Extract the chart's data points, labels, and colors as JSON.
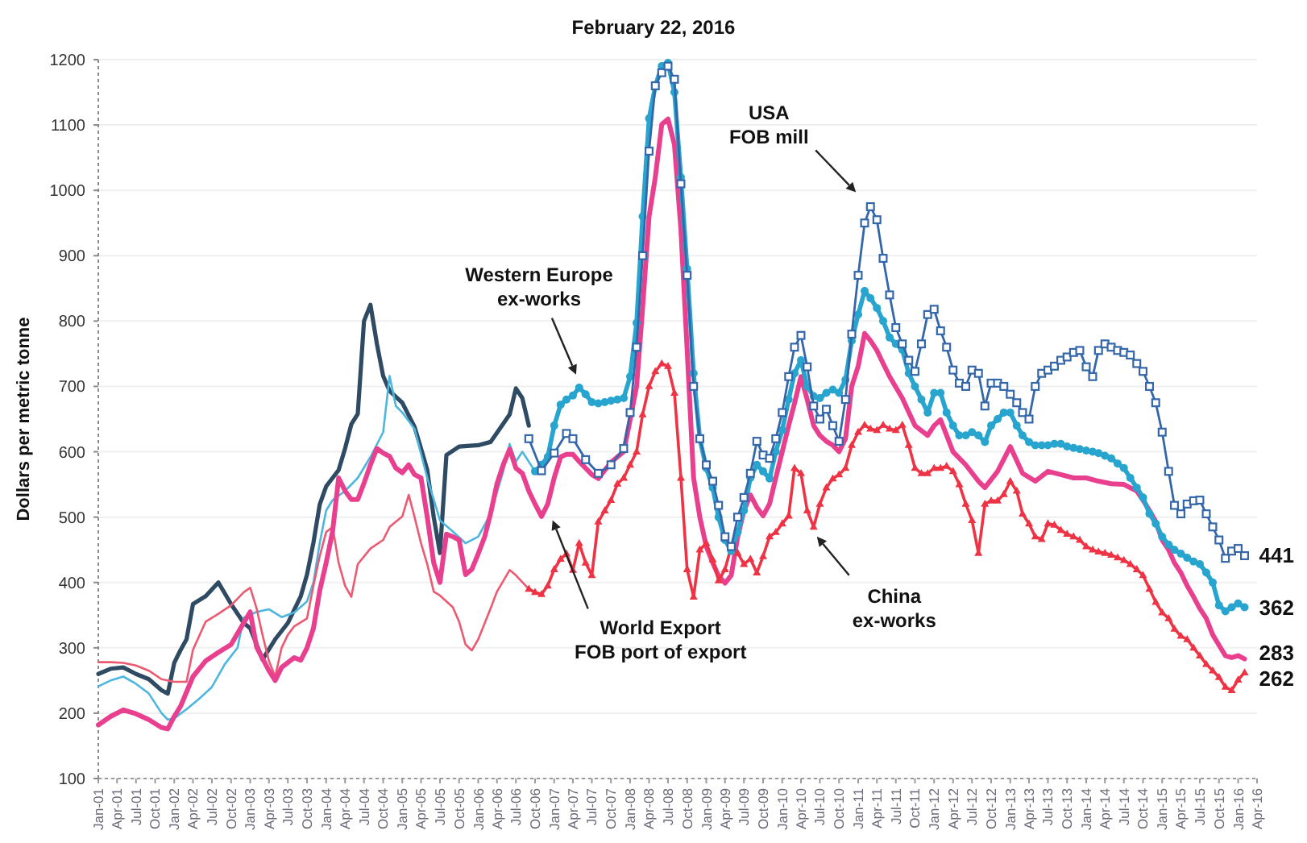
{
  "chart_data": {
    "type": "line",
    "title": "February 22, 2016",
    "ylabel": "Dollars per metric tonne",
    "xlim": [
      "2001-01",
      "2016-04"
    ],
    "xticks": [
      {
        "value": "2001-01",
        "label": "Jan-01"
      },
      {
        "value": "2001-04",
        "label": "Apr-01"
      },
      {
        "value": "2001-07",
        "label": "Jul-01"
      },
      {
        "value": "2001-10",
        "label": "Oct-01"
      },
      {
        "value": "2002-01",
        "label": "Jan-02"
      },
      {
        "value": "2002-04",
        "label": "Apr-02"
      },
      {
        "value": "2002-07",
        "label": "Jul-02"
      },
      {
        "value": "2002-10",
        "label": "Oct-02"
      },
      {
        "value": "2003-01",
        "label": "Jan-03"
      },
      {
        "value": "2003-04",
        "label": "Apr-03"
      },
      {
        "value": "2003-07",
        "label": "Jul-03"
      },
      {
        "value": "2003-10",
        "label": "Oct-03"
      },
      {
        "value": "2004-01",
        "label": "Jan-04"
      },
      {
        "value": "2004-04",
        "label": "Apr-04"
      },
      {
        "value": "2004-07",
        "label": "Jul-04"
      },
      {
        "value": "2004-10",
        "label": "Oct-04"
      },
      {
        "value": "2005-01",
        "label": "Jan-05"
      },
      {
        "value": "2005-04",
        "label": "Apr-05"
      },
      {
        "value": "2005-07",
        "label": "Jul-05"
      },
      {
        "value": "2005-10",
        "label": "Oct-05"
      },
      {
        "value": "2006-01",
        "label": "Jan-06"
      },
      {
        "value": "2006-04",
        "label": "Apr-06"
      },
      {
        "value": "2006-07",
        "label": "Jul-06"
      },
      {
        "value": "2006-10",
        "label": "Oct-06"
      },
      {
        "value": "2007-01",
        "label": "Jan-07"
      },
      {
        "value": "2007-04",
        "label": "Apr-07"
      },
      {
        "value": "2007-07",
        "label": "Jul-07"
      },
      {
        "value": "2007-10",
        "label": "Oct-07"
      },
      {
        "value": "2008-01",
        "label": "Jan-08"
      },
      {
        "value": "2008-04",
        "label": "Apr-08"
      },
      {
        "value": "2008-07",
        "label": "Jul-08"
      },
      {
        "value": "2008-10",
        "label": "Oct-08"
      },
      {
        "value": "2009-01",
        "label": "Jan-09"
      },
      {
        "value": "2009-04",
        "label": "Apr-09"
      },
      {
        "value": "2009-07",
        "label": "Jul-09"
      },
      {
        "value": "2009-10",
        "label": "Oct-09"
      },
      {
        "value": "2010-01",
        "label": "Jan-10"
      },
      {
        "value": "2010-04",
        "label": "Apr-10"
      },
      {
        "value": "2010-07",
        "label": "Jul-10"
      },
      {
        "value": "2010-10",
        "label": "Oct-10"
      },
      {
        "value": "2011-01",
        "label": "Jan-11"
      },
      {
        "value": "2011-04",
        "label": "Apr-11"
      },
      {
        "value": "2011-07",
        "label": "Jul-11"
      },
      {
        "value": "2011-10",
        "label": "Oct-11"
      },
      {
        "value": "2012-01",
        "label": "Jan-12"
      },
      {
        "value": "2012-04",
        "label": "Apr-12"
      },
      {
        "value": "2012-07",
        "label": "Jul-12"
      },
      {
        "value": "2012-10",
        "label": "Oct-12"
      },
      {
        "value": "2013-01",
        "label": "Jan-13"
      },
      {
        "value": "2013-04",
        "label": "Apr-13"
      },
      {
        "value": "2013-07",
        "label": "Jul-13"
      },
      {
        "value": "2013-10",
        "label": "Oct-13"
      },
      {
        "value": "2014-01",
        "label": "Jan-14"
      },
      {
        "value": "2014-04",
        "label": "Apr-14"
      },
      {
        "value": "2014-07",
        "label": "Jul-14"
      },
      {
        "value": "2014-10",
        "label": "Oct-14"
      },
      {
        "value": "2015-01",
        "label": "Jan-15"
      },
      {
        "value": "2015-04",
        "label": "Apr-15"
      },
      {
        "value": "2015-07",
        "label": "Jul-15"
      },
      {
        "value": "2015-10",
        "label": "Oct-15"
      },
      {
        "value": "2016-01",
        "label": "Jan-16"
      },
      {
        "value": "2016-04",
        "label": "Apr-16"
      }
    ],
    "ylim": [
      100,
      1200
    ],
    "yticks": [
      100,
      200,
      300,
      400,
      500,
      600,
      700,
      800,
      900,
      1000,
      1100,
      1200
    ],
    "grid": "y",
    "series": [
      {
        "color": "#2f4b63",
        "x": [
          "2001-01",
          "2001-03",
          "2001-05",
          "2001-07",
          "2001-09",
          "2001-11",
          "2001-12",
          "2002-01",
          "2002-02",
          "2002-03",
          "2002-04",
          "2002-06",
          "2002-08",
          "2002-10",
          "2002-12",
          "2003-01",
          "2003-03",
          "2003-05",
          "2003-07",
          "2003-09",
          "2003-10",
          "2003-11",
          "2003-12",
          "2004-01",
          "2004-03",
          "2004-04",
          "2004-05",
          "2004-06",
          "2004-07",
          "2004-08",
          "2004-09",
          "2004-10",
          "2004-11",
          "2005-01",
          "2005-03",
          "2005-04",
          "2005-05",
          "2005-06",
          "2005-07",
          "2005-08",
          "2005-10",
          "2006-01",
          "2006-03",
          "2006-04",
          "2006-06",
          "2006-07",
          "2006-08",
          "2006-09"
        ],
        "values": [
          260,
          268,
          270,
          260,
          252,
          235,
          230,
          277,
          297,
          313,
          367,
          379,
          400,
          367,
          338,
          330,
          282,
          313,
          338,
          379,
          412,
          461,
          519,
          547,
          572,
          605,
          642,
          658,
          800,
          825,
          765,
          716,
          693,
          675,
          638,
          605,
          572,
          500,
          445,
          595,
          608,
          610,
          615,
          629,
          657,
          697,
          682,
          640
        ]
      },
      {
        "color": "#4db6df",
        "x": [
          "2001-01",
          "2001-03",
          "2001-05",
          "2001-07",
          "2001-09",
          "2001-11",
          "2001-12",
          "2002-01",
          "2002-03",
          "2002-05",
          "2002-07",
          "2002-09",
          "2002-11",
          "2002-12",
          "2003-02",
          "2003-04",
          "2003-06",
          "2003-08",
          "2003-10",
          "2003-11",
          "2003-12",
          "2004-01",
          "2004-02",
          "2004-04",
          "2004-06",
          "2004-08",
          "2004-10",
          "2004-11",
          "2004-12",
          "2005-01",
          "2005-03",
          "2005-05",
          "2005-07",
          "2005-09",
          "2005-11",
          "2006-01",
          "2006-03",
          "2006-05",
          "2006-06",
          "2006-07",
          "2006-08",
          "2006-10"
        ],
        "values": [
          241,
          250,
          256,
          245,
          230,
          200,
          190,
          192,
          206,
          222,
          240,
          275,
          300,
          346,
          355,
          359,
          347,
          354,
          371,
          400,
          460,
          510,
          526,
          540,
          560,
          592,
          630,
          716,
          670,
          660,
          635,
          560,
          495,
          478,
          460,
          470,
          505,
          570,
          612,
          585,
          600,
          570
        ]
      },
      {
        "color": "#ec5a72",
        "x": [
          "2001-01",
          "2001-03",
          "2001-05",
          "2001-07",
          "2001-09",
          "2001-11",
          "2002-01",
          "2002-03",
          "2002-04",
          "2002-06",
          "2002-08",
          "2002-10",
          "2002-12",
          "2003-01",
          "2003-02",
          "2003-03",
          "2003-04",
          "2003-05",
          "2003-06",
          "2003-07",
          "2003-08",
          "2003-10",
          "2003-11",
          "2003-12",
          "2004-01",
          "2004-02",
          "2004-03",
          "2004-04",
          "2004-05",
          "2004-06",
          "2004-08",
          "2004-10",
          "2004-11",
          "2005-01",
          "2005-02",
          "2005-03",
          "2005-04",
          "2005-05",
          "2005-06",
          "2005-07",
          "2005-09",
          "2005-10",
          "2005-11",
          "2005-12",
          "2006-01",
          "2006-03",
          "2006-04",
          "2006-06",
          "2006-07",
          "2006-09"
        ],
        "values": [
          278,
          278,
          277,
          273,
          265,
          252,
          248,
          248,
          297,
          340,
          352,
          365,
          385,
          392,
          360,
          320,
          280,
          256,
          300,
          320,
          333,
          345,
          395,
          440,
          477,
          485,
          430,
          395,
          378,
          428,
          452,
          465,
          485,
          501,
          534,
          500,
          460,
          428,
          386,
          380,
          362,
          340,
          305,
          296,
          313,
          360,
          386,
          419,
          411,
          390
        ]
      },
      {
        "name": "World Export FOB port of export",
        "color": "#e8408f",
        "x": [
          "2001-01",
          "2001-03",
          "2001-05",
          "2001-07",
          "2001-09",
          "2001-11",
          "2001-12",
          "2002-01",
          "2002-02",
          "2002-04",
          "2002-06",
          "2002-08",
          "2002-10",
          "2002-11",
          "2003-01",
          "2003-02",
          "2003-04",
          "2003-05",
          "2003-06",
          "2003-08",
          "2003-09",
          "2003-10",
          "2003-11",
          "2003-12",
          "2004-01",
          "2004-02",
          "2004-03",
          "2004-04",
          "2004-05",
          "2004-06",
          "2004-07",
          "2004-08",
          "2004-09",
          "2004-10",
          "2004-11",
          "2004-12",
          "2005-01",
          "2005-02",
          "2005-03",
          "2005-04",
          "2005-05",
          "2005-06",
          "2005-07",
          "2005-08",
          "2005-09",
          "2005-10",
          "2005-11",
          "2005-12",
          "2006-01",
          "2006-02",
          "2006-03",
          "2006-04",
          "2006-05",
          "2006-06",
          "2006-07",
          "2006-08",
          "2006-09",
          "2006-10",
          "2006-11",
          "2006-12",
          "2007-01",
          "2007-02",
          "2007-03",
          "2007-04",
          "2007-05",
          "2007-07",
          "2007-08",
          "2007-10",
          "2007-12",
          "2008-01",
          "2008-02",
          "2008-03",
          "2008-04",
          "2008-05",
          "2008-06",
          "2008-07",
          "2008-08",
          "2008-09",
          "2008-10",
          "2008-11",
          "2008-12",
          "2009-01",
          "2009-02",
          "2009-03",
          "2009-04",
          "2009-05",
          "2009-06",
          "2009-07",
          "2009-08",
          "2009-09",
          "2009-10",
          "2009-11",
          "2009-12",
          "2010-01",
          "2010-02",
          "2010-03",
          "2010-04",
          "2010-05",
          "2010-06",
          "2010-07",
          "2010-08",
          "2010-09",
          "2010-10",
          "2010-11",
          "2010-12",
          "2011-01",
          "2011-02",
          "2011-03",
          "2011-04",
          "2011-05",
          "2011-06",
          "2011-08",
          "2011-10",
          "2011-12",
          "2012-01",
          "2012-02",
          "2012-04",
          "2012-06",
          "2012-08",
          "2012-09",
          "2012-11",
          "2013-01",
          "2013-03",
          "2013-05",
          "2013-07",
          "2013-09",
          "2013-11",
          "2014-01",
          "2014-03",
          "2014-05",
          "2014-07",
          "2014-09",
          "2014-10",
          "2014-11",
          "2014-12",
          "2015-01",
          "2015-02",
          "2015-03",
          "2015-04",
          "2015-05",
          "2015-06",
          "2015-07",
          "2015-08",
          "2015-09",
          "2015-10",
          "2015-11",
          "2015-12",
          "2016-01",
          "2016-02"
        ],
        "values": [
          182,
          195,
          205,
          199,
          190,
          178,
          176,
          195,
          211,
          256,
          280,
          293,
          305,
          322,
          355,
          301,
          265,
          250,
          270,
          285,
          281,
          300,
          330,
          387,
          430,
          478,
          560,
          540,
          527,
          527,
          552,
          580,
          605,
          598,
          593,
          575,
          568,
          580,
          565,
          560,
          500,
          430,
          400,
          474,
          470,
          465,
          412,
          420,
          444,
          470,
          505,
          551,
          580,
          604,
          575,
          567,
          540,
          520,
          501,
          520,
          560,
          592,
          596,
          596,
          585,
          565,
          559,
          584,
          600,
          649,
          700,
          820,
          960,
          1020,
          1101,
          1109,
          1070,
          940,
          756,
          560,
          500,
          455,
          430,
          410,
          399,
          411,
          470,
          510,
          534,
          515,
          502,
          520,
          560,
          600,
          640,
          674,
          715,
          680,
          640,
          625,
          616,
          610,
          600,
          620,
          700,
          731,
          781,
          770,
          755,
          735,
          715,
          682,
          640,
          625,
          640,
          649,
          600,
          580,
          555,
          545,
          570,
          608,
          567,
          555,
          570,
          565,
          560,
          560,
          555,
          551,
          550,
          540,
          526,
          510,
          493,
          465,
          450,
          430,
          415,
          395,
          378,
          360,
          345,
          320,
          304,
          288,
          285,
          288,
          283
        ]
      },
      {
        "name": "China ex-works",
        "color": "#ee3344",
        "marker": "triangle",
        "x": [
          "2006-09",
          "2006-10",
          "2006-11",
          "2006-12",
          "2007-01",
          "2007-02",
          "2007-03",
          "2007-04",
          "2007-05",
          "2007-06",
          "2007-07",
          "2007-08",
          "2007-09",
          "2007-10",
          "2007-11",
          "2007-12",
          "2008-01",
          "2008-02",
          "2008-03",
          "2008-04",
          "2008-05",
          "2008-06",
          "2008-07",
          "2008-08",
          "2008-09",
          "2008-10",
          "2008-11",
          "2008-12",
          "2009-01",
          "2009-02",
          "2009-03",
          "2009-04",
          "2009-05",
          "2009-06",
          "2009-07",
          "2009-08",
          "2009-09",
          "2009-10",
          "2009-11",
          "2009-12",
          "2010-01",
          "2010-02",
          "2010-03",
          "2010-04",
          "2010-05",
          "2010-06",
          "2010-07",
          "2010-08",
          "2010-09",
          "2010-10",
          "2010-11",
          "2010-12",
          "2011-01",
          "2011-02",
          "2011-03",
          "2011-04",
          "2011-05",
          "2011-06",
          "2011-07",
          "2011-08",
          "2011-09",
          "2011-10",
          "2011-11",
          "2011-12",
          "2012-01",
          "2012-02",
          "2012-03",
          "2012-04",
          "2012-05",
          "2012-06",
          "2012-07",
          "2012-08",
          "2012-09",
          "2012-10",
          "2012-11",
          "2012-12",
          "2013-01",
          "2013-02",
          "2013-03",
          "2013-04",
          "2013-05",
          "2013-06",
          "2013-07",
          "2013-08",
          "2013-09",
          "2013-10",
          "2013-11",
          "2013-12",
          "2014-01",
          "2014-02",
          "2014-03",
          "2014-04",
          "2014-05",
          "2014-06",
          "2014-07",
          "2014-08",
          "2014-09",
          "2014-10",
          "2014-11",
          "2014-12",
          "2015-01",
          "2015-02",
          "2015-03",
          "2015-04",
          "2015-05",
          "2015-06",
          "2015-07",
          "2015-08",
          "2015-09",
          "2015-10",
          "2015-11",
          "2015-12",
          "2016-01",
          "2016-02"
        ],
        "values": [
          390,
          385,
          382,
          395,
          420,
          436,
          444,
          419,
          460,
          430,
          411,
          493,
          510,
          526,
          551,
          560,
          580,
          600,
          657,
          700,
          723,
          735,
          731,
          690,
          560,
          420,
          378,
          450,
          460,
          435,
          403,
          420,
          455,
          445,
          428,
          436,
          415,
          440,
          470,
          477,
          490,
          502,
          575,
          567,
          510,
          485,
          520,
          545,
          559,
          565,
          575,
          610,
          630,
          641,
          635,
          633,
          641,
          635,
          633,
          641,
          610,
          575,
          567,
          567,
          575,
          575,
          578,
          570,
          550,
          520,
          495,
          445,
          520,
          525,
          525,
          535,
          555,
          540,
          505,
          490,
          470,
          466,
          490,
          488,
          480,
          474,
          470,
          465,
          455,
          450,
          447,
          445,
          442,
          438,
          434,
          428,
          420,
          411,
          390,
          370,
          354,
          345,
          329,
          318,
          313,
          300,
          288,
          275,
          265,
          255,
          240,
          235,
          251,
          262
        ]
      },
      {
        "name": "Western Europe ex-works",
        "color": "#27a5cf",
        "marker": "circle",
        "x": [
          "2006-10",
          "2006-11",
          "2006-12",
          "2007-01",
          "2007-02",
          "2007-03",
          "2007-04",
          "2007-05",
          "2007-06",
          "2007-07",
          "2007-08",
          "2007-09",
          "2007-10",
          "2007-11",
          "2007-12",
          "2008-01",
          "2008-02",
          "2008-03",
          "2008-04",
          "2008-05",
          "2008-06",
          "2008-07",
          "2008-08",
          "2008-09",
          "2008-10",
          "2008-11",
          "2008-12",
          "2009-01",
          "2009-02",
          "2009-03",
          "2009-04",
          "2009-05",
          "2009-06",
          "2009-07",
          "2009-08",
          "2009-09",
          "2009-10",
          "2009-11",
          "2009-12",
          "2010-01",
          "2010-02",
          "2010-03",
          "2010-04",
          "2010-05",
          "2010-06",
          "2010-07",
          "2010-08",
          "2010-09",
          "2010-10",
          "2010-11",
          "2010-12",
          "2011-01",
          "2011-02",
          "2011-03",
          "2011-04",
          "2011-05",
          "2011-06",
          "2011-07",
          "2011-08",
          "2011-09",
          "2011-10",
          "2011-11",
          "2011-12",
          "2012-01",
          "2012-02",
          "2012-03",
          "2012-04",
          "2012-05",
          "2012-06",
          "2012-07",
          "2012-08",
          "2012-09",
          "2012-10",
          "2012-11",
          "2012-12",
          "2013-01",
          "2013-02",
          "2013-03",
          "2013-04",
          "2013-05",
          "2013-06",
          "2013-07",
          "2013-08",
          "2013-09",
          "2013-10",
          "2013-11",
          "2013-12",
          "2014-01",
          "2014-02",
          "2014-03",
          "2014-04",
          "2014-05",
          "2014-06",
          "2014-07",
          "2014-08",
          "2014-09",
          "2014-10",
          "2014-11",
          "2014-12",
          "2015-01",
          "2015-02",
          "2015-03",
          "2015-04",
          "2015-05",
          "2015-06",
          "2015-07",
          "2015-08",
          "2015-09",
          "2015-10",
          "2015-11",
          "2015-12",
          "2016-01",
          "2016-02"
        ],
        "values": [
          570,
          580,
          592,
          640,
          672,
          680,
          686,
          698,
          688,
          676,
          674,
          676,
          678,
          680,
          682,
          715,
          797,
          960,
          1110,
          1160,
          1190,
          1195,
          1150,
          1020,
          880,
          720,
          620,
          575,
          545,
          500,
          465,
          448,
          477,
          510,
          560,
          580,
          570,
          559,
          600,
          633,
          680,
          720,
          740,
          700,
          685,
          682,
          690,
          695,
          690,
          710,
          770,
          810,
          846,
          835,
          820,
          800,
          775,
          765,
          756,
          720,
          700,
          680,
          660,
          690,
          690,
          660,
          640,
          625,
          625,
          630,
          625,
          615,
          640,
          650,
          660,
          660,
          640,
          625,
          615,
          610,
          610,
          610,
          612,
          612,
          608,
          606,
          604,
          602,
          600,
          598,
          594,
          590,
          582,
          575,
          560,
          545,
          530,
          505,
          490,
          470,
          458,
          450,
          444,
          438,
          432,
          428,
          415,
          400,
          365,
          356,
          362,
          368,
          362
        ]
      },
      {
        "name": "USA FOB mill",
        "color": "#3466aa",
        "marker": "square",
        "x": [
          "2006-09",
          "2006-11",
          "2007-01",
          "2007-03",
          "2007-04",
          "2007-06",
          "2007-08",
          "2007-10",
          "2007-12",
          "2008-01",
          "2008-02",
          "2008-03",
          "2008-04",
          "2008-05",
          "2008-06",
          "2008-07",
          "2008-08",
          "2008-09",
          "2008-10",
          "2008-11",
          "2008-12",
          "2009-01",
          "2009-02",
          "2009-03",
          "2009-04",
          "2009-05",
          "2009-06",
          "2009-07",
          "2009-08",
          "2009-09",
          "2009-10",
          "2009-11",
          "2009-12",
          "2010-01",
          "2010-02",
          "2010-03",
          "2010-04",
          "2010-05",
          "2010-06",
          "2010-07",
          "2010-08",
          "2010-09",
          "2010-10",
          "2010-11",
          "2010-12",
          "2011-01",
          "2011-02",
          "2011-03",
          "2011-04",
          "2011-05",
          "2011-06",
          "2011-07",
          "2011-08",
          "2011-09",
          "2011-10",
          "2011-11",
          "2011-12",
          "2012-01",
          "2012-02",
          "2012-03",
          "2012-04",
          "2012-05",
          "2012-06",
          "2012-07",
          "2012-08",
          "2012-09",
          "2012-10",
          "2012-11",
          "2012-12",
          "2013-01",
          "2013-02",
          "2013-03",
          "2013-04",
          "2013-05",
          "2013-06",
          "2013-07",
          "2013-08",
          "2013-09",
          "2013-10",
          "2013-11",
          "2013-12",
          "2014-01",
          "2014-02",
          "2014-03",
          "2014-04",
          "2014-05",
          "2014-06",
          "2014-07",
          "2014-08",
          "2014-09",
          "2014-10",
          "2014-11",
          "2014-12",
          "2015-01",
          "2015-02",
          "2015-03",
          "2015-04",
          "2015-05",
          "2015-06",
          "2015-07",
          "2015-08",
          "2015-09",
          "2015-10",
          "2015-11",
          "2015-12",
          "2016-01",
          "2016-02"
        ],
        "values": [
          620,
          571,
          598,
          628,
          620,
          588,
          567,
          580,
          605,
          660,
          760,
          900,
          1060,
          1160,
          1180,
          1190,
          1170,
          1010,
          870,
          700,
          620,
          580,
          555,
          518,
          470,
          455,
          500,
          530,
          567,
          616,
          595,
          590,
          620,
          660,
          715,
          760,
          778,
          730,
          670,
          650,
          665,
          640,
          616,
          680,
          780,
          870,
          950,
          975,
          955,
          896,
          840,
          790,
          765,
          740,
          723,
          765,
          810,
          818,
          785,
          760,
          725,
          705,
          700,
          725,
          720,
          670,
          705,
          705,
          700,
          688,
          675,
          660,
          650,
          700,
          720,
          725,
          731,
          740,
          745,
          752,
          755,
          730,
          715,
          755,
          765,
          760,
          755,
          752,
          748,
          735,
          723,
          700,
          675,
          630,
          570,
          518,
          505,
          520,
          525,
          526,
          505,
          485,
          465,
          437,
          448,
          452,
          441
        ]
      }
    ],
    "annotations": [
      {
        "text": "441",
        "x": "2016-02",
        "y": 441
      },
      {
        "text": "362",
        "x": "2016-02",
        "y": 362
      },
      {
        "text": "283",
        "x": "2016-02",
        "y": 283
      },
      {
        "text": "262",
        "x": "2016-02",
        "y": 262
      }
    ]
  }
}
